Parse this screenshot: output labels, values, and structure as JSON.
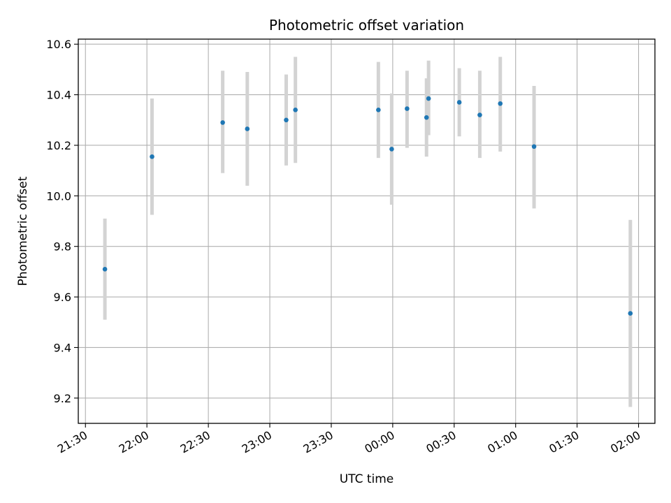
{
  "chart_data": {
    "type": "scatter",
    "title": "Photometric offset variation",
    "xlabel": "UTC time",
    "ylabel": "Photometric offset",
    "x_tick_labels": [
      "21:30",
      "22:00",
      "22:30",
      "23:00",
      "23:30",
      "00:00",
      "00:30",
      "01:00",
      "01:30",
      "02:00"
    ],
    "x_ticks_minutes": [
      0,
      30,
      60,
      90,
      120,
      150,
      180,
      210,
      240,
      270
    ],
    "xlim_minutes": [
      -3.5,
      278
    ],
    "y_ticks": [
      9.2,
      9.4,
      9.6,
      9.8,
      10.0,
      10.2,
      10.4,
      10.6
    ],
    "ylim": [
      9.1,
      10.62
    ],
    "grid": true,
    "marker_color": "#1f77b4",
    "errorbar_color": "#d3d3d3",
    "points": [
      {
        "t": "21:39",
        "x": 9.5,
        "y": 9.71,
        "low": 9.51,
        "high": 9.91
      },
      {
        "t": "22:03",
        "x": 32.5,
        "y": 10.155,
        "low": 9.925,
        "high": 10.385
      },
      {
        "t": "22:37",
        "x": 67.0,
        "y": 10.29,
        "low": 10.09,
        "high": 10.495
      },
      {
        "t": "22:49",
        "x": 79.0,
        "y": 10.265,
        "low": 10.04,
        "high": 10.49
      },
      {
        "t": "23:08",
        "x": 98.0,
        "y": 10.3,
        "low": 10.12,
        "high": 10.48
      },
      {
        "t": "23:12",
        "x": 102.5,
        "y": 10.34,
        "low": 10.13,
        "high": 10.55
      },
      {
        "t": "23:53",
        "x": 143.0,
        "y": 10.34,
        "low": 10.15,
        "high": 10.53
      },
      {
        "t": "23:59",
        "x": 149.5,
        "y": 10.185,
        "low": 9.965,
        "high": 10.405
      },
      {
        "t": "00:07",
        "x": 157.0,
        "y": 10.345,
        "low": 10.19,
        "high": 10.495
      },
      {
        "t": "00:16",
        "x": 166.5,
        "y": 10.31,
        "low": 10.155,
        "high": 10.465
      },
      {
        "t": "00:17",
        "x": 167.5,
        "y": 10.385,
        "low": 10.24,
        "high": 10.535
      },
      {
        "t": "00:32",
        "x": 182.5,
        "y": 10.37,
        "low": 10.235,
        "high": 10.505
      },
      {
        "t": "00:42",
        "x": 192.5,
        "y": 10.32,
        "low": 10.15,
        "high": 10.495
      },
      {
        "t": "00:52",
        "x": 202.5,
        "y": 10.365,
        "low": 10.175,
        "high": 10.55
      },
      {
        "t": "01:09",
        "x": 219.0,
        "y": 10.195,
        "low": 9.95,
        "high": 10.435
      },
      {
        "t": "01:56",
        "x": 266.0,
        "y": 9.535,
        "low": 9.165,
        "high": 9.905
      }
    ]
  }
}
